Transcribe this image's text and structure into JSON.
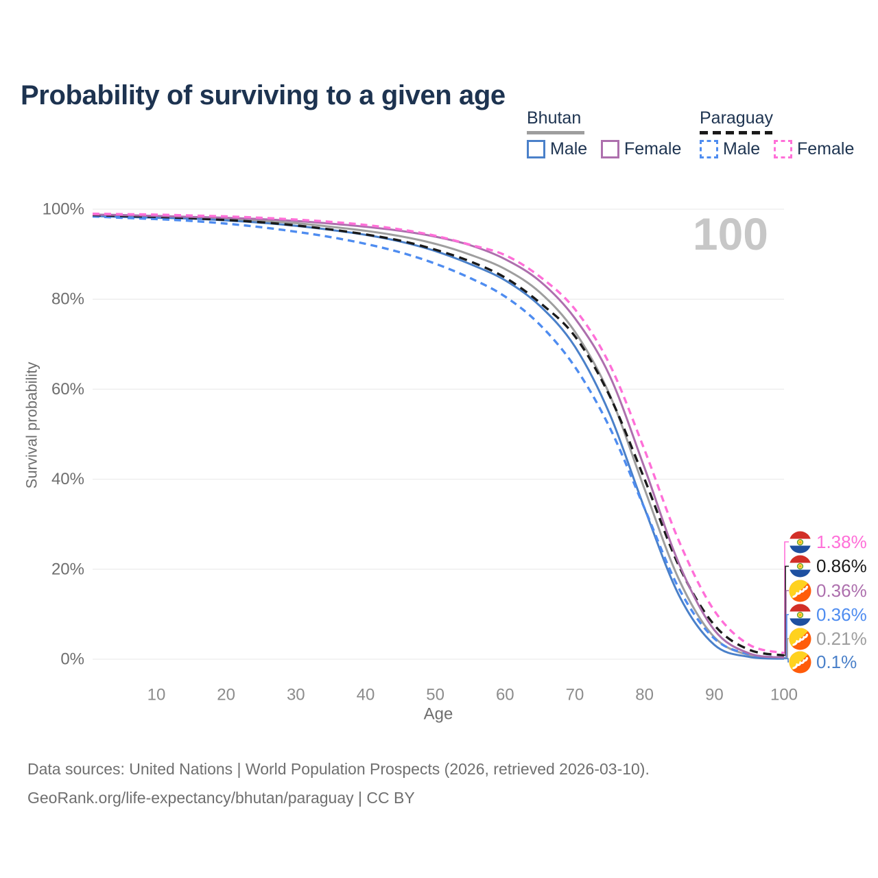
{
  "title": "Probability of surviving to a given age",
  "watermark": "100",
  "legend": {
    "groups": [
      {
        "name": "Bhutan",
        "line_style": "solid",
        "line_color": "#9e9e9e",
        "items": [
          {
            "label": "Male",
            "color": "#4a80c9"
          },
          {
            "label": "Female",
            "color": "#ad6fad"
          }
        ]
      },
      {
        "name": "Paraguay",
        "line_style": "dashed",
        "line_color": "#1a1a1a",
        "items": [
          {
            "label": "Male",
            "color": "#4e8cf0"
          },
          {
            "label": "Female",
            "color": "#ff6fd8"
          }
        ]
      }
    ]
  },
  "chart_data": {
    "type": "line",
    "title": "Probability of surviving to a given age",
    "xlabel": "Age",
    "ylabel": "Survival probability",
    "xlim": [
      0,
      100
    ],
    "ylim": [
      0,
      100
    ],
    "grid": "horizontal",
    "legend_position": "top-right",
    "xticks": [
      10,
      20,
      30,
      40,
      50,
      60,
      70,
      80,
      90,
      100
    ],
    "yticks": [
      {
        "value": 0,
        "label": "0%"
      },
      {
        "value": 20,
        "label": "20%"
      },
      {
        "value": 40,
        "label": "40%"
      },
      {
        "value": 60,
        "label": "60%"
      },
      {
        "value": 80,
        "label": "80%"
      },
      {
        "value": 100,
        "label": "100%"
      }
    ],
    "x": [
      0,
      5,
      10,
      15,
      20,
      25,
      30,
      35,
      40,
      45,
      50,
      55,
      60,
      65,
      70,
      75,
      80,
      85,
      90,
      95,
      100
    ],
    "series": [
      {
        "name": "Bhutan Both sexes",
        "country": "Bhutan",
        "sex": "Both",
        "color": "#9e9e9e",
        "dash": false,
        "values": [
          98.7,
          98.5,
          98.3,
          98.1,
          97.8,
          97.4,
          96.9,
          96.1,
          95.2,
          94.0,
          92.3,
          89.9,
          86.7,
          81.5,
          72.8,
          58.8,
          37.8,
          17.5,
          4.9,
          0.9,
          0.21
        ]
      },
      {
        "name": "Bhutan Male",
        "country": "Bhutan",
        "sex": "Male",
        "color": "#4a80c9",
        "dash": false,
        "values": [
          98.5,
          98.3,
          98.1,
          97.9,
          97.5,
          97.0,
          96.3,
          95.4,
          94.3,
          92.8,
          90.7,
          87.8,
          84.2,
          78.5,
          69.5,
          54.5,
          33.5,
          14.0,
          3.2,
          0.5,
          0.1
        ]
      },
      {
        "name": "Paraguay Male",
        "country": "Paraguay",
        "sex": "Male",
        "color": "#4e8cf0",
        "dash": true,
        "values": [
          98.4,
          98.1,
          97.8,
          97.4,
          96.8,
          96.0,
          95.0,
          93.8,
          92.3,
          90.4,
          87.9,
          84.7,
          80.6,
          74.3,
          65.0,
          51.5,
          33.5,
          15.5,
          4.6,
          1.1,
          0.36
        ]
      },
      {
        "name": "Paraguay Both sexes",
        "country": "Paraguay",
        "sex": "Both",
        "color": "#1a1a1a",
        "dash": true,
        "values": [
          98.7,
          98.5,
          98.3,
          98.0,
          97.6,
          97.1,
          96.4,
          95.5,
          94.4,
          93.0,
          91.0,
          88.4,
          84.8,
          79.2,
          71.8,
          58.5,
          40.0,
          20.5,
          7.6,
          2.1,
          0.86
        ]
      },
      {
        "name": "Bhutan Female",
        "country": "Bhutan",
        "sex": "Female",
        "color": "#ad6fad",
        "dash": false,
        "values": [
          98.8,
          98.7,
          98.5,
          98.3,
          98.1,
          97.8,
          97.4,
          96.8,
          96.1,
          95.2,
          93.9,
          92.0,
          88.9,
          84.0,
          75.8,
          63.0,
          42.5,
          21.0,
          6.5,
          1.3,
          0.36
        ]
      },
      {
        "name": "Paraguay Female",
        "country": "Paraguay",
        "sex": "Female",
        "color": "#ff6fd8",
        "dash": true,
        "values": [
          99.0,
          98.9,
          98.8,
          98.6,
          98.4,
          98.1,
          97.7,
          97.2,
          96.5,
          95.5,
          94.1,
          92.1,
          89.8,
          85.0,
          77.8,
          65.5,
          46.5,
          26.0,
          10.8,
          3.2,
          1.38
        ]
      }
    ]
  },
  "end_labels": [
    {
      "text": "1.38%",
      "color": "#ff6fd8",
      "flag": "paraguay",
      "series": "Paraguay Female"
    },
    {
      "text": "0.86%",
      "color": "#1a1a1a",
      "flag": "paraguay",
      "series": "Paraguay Both sexes"
    },
    {
      "text": "0.36%",
      "color": "#ad6fad",
      "flag": "bhutan",
      "series": "Bhutan Female"
    },
    {
      "text": "0.36%",
      "color": "#4e8cf0",
      "flag": "paraguay",
      "series": "Paraguay Male"
    },
    {
      "text": "0.21%",
      "color": "#9e9e9e",
      "flag": "bhutan",
      "series": "Bhutan Both sexes"
    },
    {
      "text": "0.1%",
      "color": "#4a80c9",
      "flag": "bhutan",
      "series": "Bhutan Male"
    }
  ],
  "footer": {
    "line1": "Data sources: United Nations | World Population Prospects (2026, retrieved 2026-03-10).",
    "line2": "GeoRank.org/life-expectancy/bhutan/paraguay | CC BY"
  }
}
